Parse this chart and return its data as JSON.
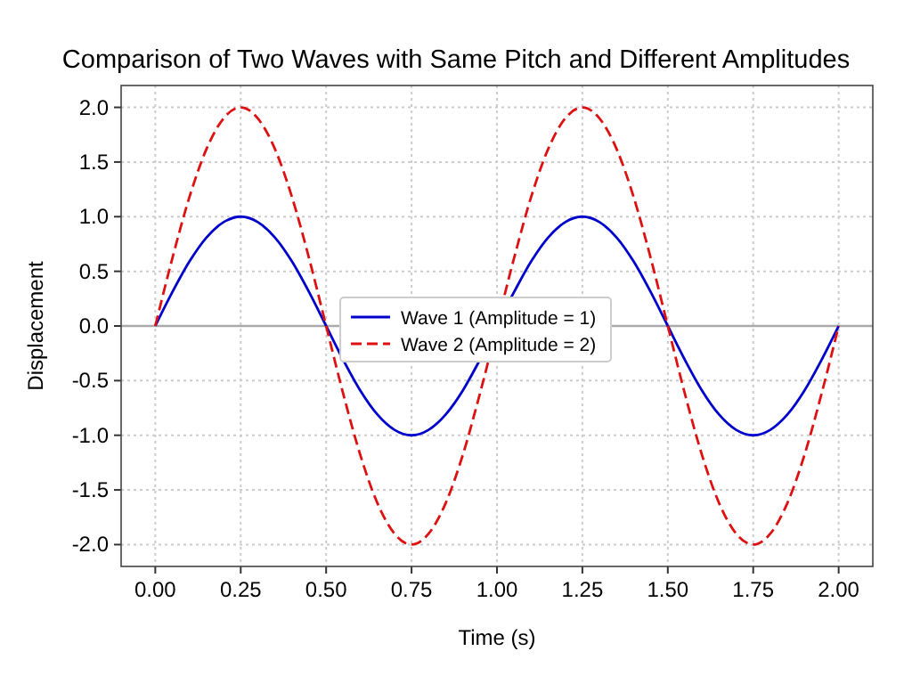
{
  "chart_data": {
    "type": "line",
    "title": "Comparison of Two Waves with Same Pitch and Different Amplitudes",
    "xlabel": "Time (s)",
    "ylabel": "Displacement",
    "x": [
      0,
      0.05,
      0.1,
      0.15,
      0.2,
      0.25,
      0.3,
      0.35,
      0.4,
      0.45,
      0.5,
      0.55,
      0.6,
      0.65,
      0.7,
      0.75,
      0.8,
      0.85,
      0.9,
      0.95,
      1,
      1.05,
      1.1,
      1.15,
      1.2,
      1.25,
      1.3,
      1.35,
      1.4,
      1.45,
      1.5,
      1.55,
      1.6,
      1.65,
      1.7,
      1.75,
      1.8,
      1.85,
      1.9,
      1.95,
      2
    ],
    "series": [
      {
        "name": "Wave 1 (Amplitude = 1)",
        "color": "#0000cc",
        "line_style": "solid",
        "values": [
          0,
          0.31,
          0.59,
          0.81,
          0.95,
          1,
          0.95,
          0.81,
          0.59,
          0.31,
          0,
          -0.31,
          -0.59,
          -0.81,
          -0.95,
          -1,
          -0.95,
          -0.81,
          -0.59,
          -0.31,
          null,
          0.31,
          0.59,
          0.81,
          0.95,
          1,
          0.95,
          0.81,
          0.59,
          0.31,
          0,
          -0.31,
          -0.59,
          -0.81,
          -0.95,
          -1,
          -0.95,
          -0.81,
          -0.59,
          -0.31,
          0
        ]
      },
      {
        "name": "Wave 2 (Amplitude = 2)",
        "color": "#dd1111",
        "line_style": "dashed",
        "values": [
          0,
          0.62,
          1.18,
          1.62,
          1.9,
          2,
          1.9,
          1.62,
          1.18,
          0.62,
          0,
          -0.62,
          -1.18,
          -1.62,
          -1.9,
          -2,
          -1.9,
          -1.62,
          -1.18,
          -0.62,
          null,
          0.62,
          1.18,
          1.62,
          1.9,
          2,
          1.9,
          1.62,
          1.18,
          0.62,
          0,
          -0.62,
          -1.18,
          -1.62,
          -1.9,
          -2,
          -1.9,
          -1.62,
          -1.18,
          -0.62,
          0
        ]
      }
    ],
    "xlim": [
      -0.1,
      2.1
    ],
    "ylim": [
      -2.2,
      2.2
    ],
    "xticks": [
      {
        "value": 0,
        "label": "0.00"
      },
      0.25,
      {
        "value": 0.5,
        "label": "0.50"
      },
      0.75,
      {
        "value": 1,
        "label": "1.00"
      },
      1.25,
      {
        "value": 1.5,
        "label": "1.50"
      },
      1.75,
      {
        "value": 2,
        "label": "2.00"
      }
    ],
    "yticks": [
      {
        "value": -2,
        "label": "-2.0"
      },
      -1.5,
      {
        "value": -1,
        "label": "-1.0"
      },
      -0.5,
      {
        "value": 0,
        "label": "0.0"
      },
      0.5,
      {
        "value": 1,
        "label": "1.0"
      },
      1.5,
      {
        "value": 2,
        "label": "2.0"
      }
    ],
    "ref_lines": [
      {
        "axis": "y",
        "value": 0,
        "color": "#aaaaaa"
      }
    ],
    "grid": true,
    "legend": "center",
    "marker": "none"
  }
}
